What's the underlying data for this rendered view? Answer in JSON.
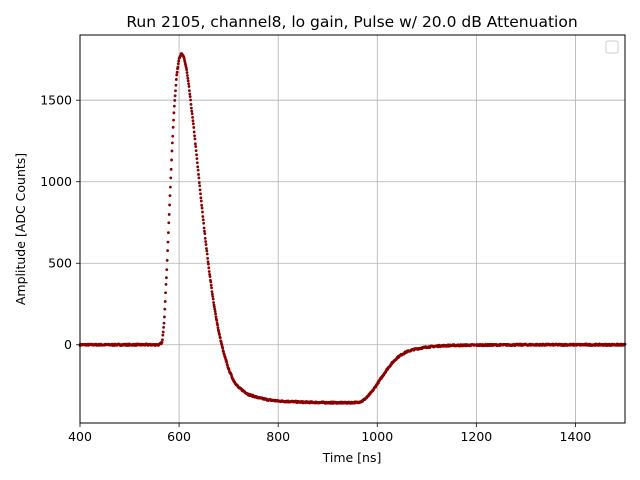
{
  "chart_data": {
    "type": "scatter",
    "title": "Run 2105, channel8, lo gain, Pulse w/ 20.0 dB Attenuation",
    "xlabel": "Time [ns]",
    "ylabel": "Amplitude [ADC Counts]",
    "xlim": [
      400,
      1500
    ],
    "ylim": [
      -480,
      1900
    ],
    "xticks": [
      400,
      600,
      800,
      1000,
      1200,
      1400
    ],
    "yticks": [
      0,
      500,
      1000,
      1500
    ],
    "grid": true,
    "legend": {
      "placement": "top-right",
      "entries": []
    },
    "marker_color": "#8b0000",
    "series": [
      {
        "points": [
          [
            400,
            0
          ],
          [
            450,
            0
          ],
          [
            500,
            0
          ],
          [
            540,
            0
          ],
          [
            560,
            0
          ],
          [
            566,
            15
          ],
          [
            570,
            150
          ],
          [
            575,
            450
          ],
          [
            580,
            800
          ],
          [
            585,
            1150
          ],
          [
            590,
            1450
          ],
          [
            595,
            1650
          ],
          [
            600,
            1760
          ],
          [
            605,
            1785
          ],
          [
            610,
            1760
          ],
          [
            615,
            1690
          ],
          [
            620,
            1580
          ],
          [
            630,
            1320
          ],
          [
            640,
            1020
          ],
          [
            650,
            730
          ],
          [
            660,
            470
          ],
          [
            670,
            250
          ],
          [
            680,
            80
          ],
          [
            690,
            -50
          ],
          [
            700,
            -150
          ],
          [
            710,
            -220
          ],
          [
            720,
            -262
          ],
          [
            740,
            -305
          ],
          [
            760,
            -325
          ],
          [
            780,
            -338
          ],
          [
            800,
            -345
          ],
          [
            850,
            -352
          ],
          [
            900,
            -355
          ],
          [
            940,
            -356
          ],
          [
            960,
            -354
          ],
          [
            970,
            -345
          ],
          [
            980,
            -320
          ],
          [
            990,
            -285
          ],
          [
            1000,
            -240
          ],
          [
            1010,
            -195
          ],
          [
            1020,
            -150
          ],
          [
            1030,
            -112
          ],
          [
            1040,
            -80
          ],
          [
            1050,
            -58
          ],
          [
            1060,
            -42
          ],
          [
            1075,
            -28
          ],
          [
            1100,
            -14
          ],
          [
            1125,
            -7
          ],
          [
            1150,
            -4
          ],
          [
            1200,
            -2
          ],
          [
            1300,
            0
          ],
          [
            1400,
            0
          ],
          [
            1500,
            0
          ]
        ]
      }
    ]
  }
}
